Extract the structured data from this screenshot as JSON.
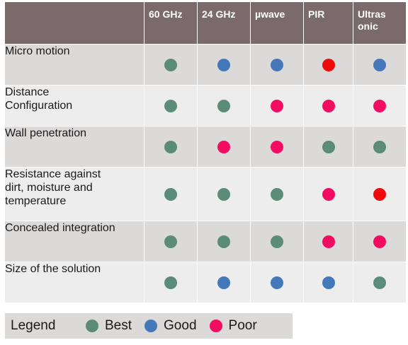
{
  "colors": {
    "best": "#5b8c7a",
    "good": "#4478b8",
    "poor": "#f20d63",
    "poor_alt": "#ee0b0b"
  },
  "table": {
    "columns": [
      "60 GHz",
      "24 GHz",
      "µwave",
      "PIR",
      "Ultras\nonic"
    ],
    "rows": [
      {
        "feature": "Micro motion",
        "ratings": [
          "best",
          "good",
          "good",
          "poor_alt",
          "good"
        ]
      },
      {
        "feature": "Distance\nConfiguration",
        "ratings": [
          "best",
          "best",
          "poor",
          "poor",
          "poor"
        ]
      },
      {
        "feature": "Wall penetration",
        "ratings": [
          "best",
          "poor",
          "poor",
          "best",
          "best"
        ]
      },
      {
        "feature": "Resistance against\ndirt, moisture and\ntemperature",
        "ratings": [
          "best",
          "best",
          "best",
          "poor",
          "poor_alt"
        ]
      },
      {
        "feature": "Concealed integration",
        "ratings": [
          "best",
          "best",
          "best",
          "poor",
          "poor"
        ]
      },
      {
        "feature": "Size of the solution",
        "ratings": [
          "best",
          "good",
          "good",
          "good",
          "best"
        ]
      }
    ]
  },
  "legend": {
    "title": "Legend",
    "items": [
      {
        "label": "Best",
        "rating": "best"
      },
      {
        "label": "Good",
        "rating": "good"
      },
      {
        "label": "Poor",
        "rating": "poor"
      }
    ]
  }
}
